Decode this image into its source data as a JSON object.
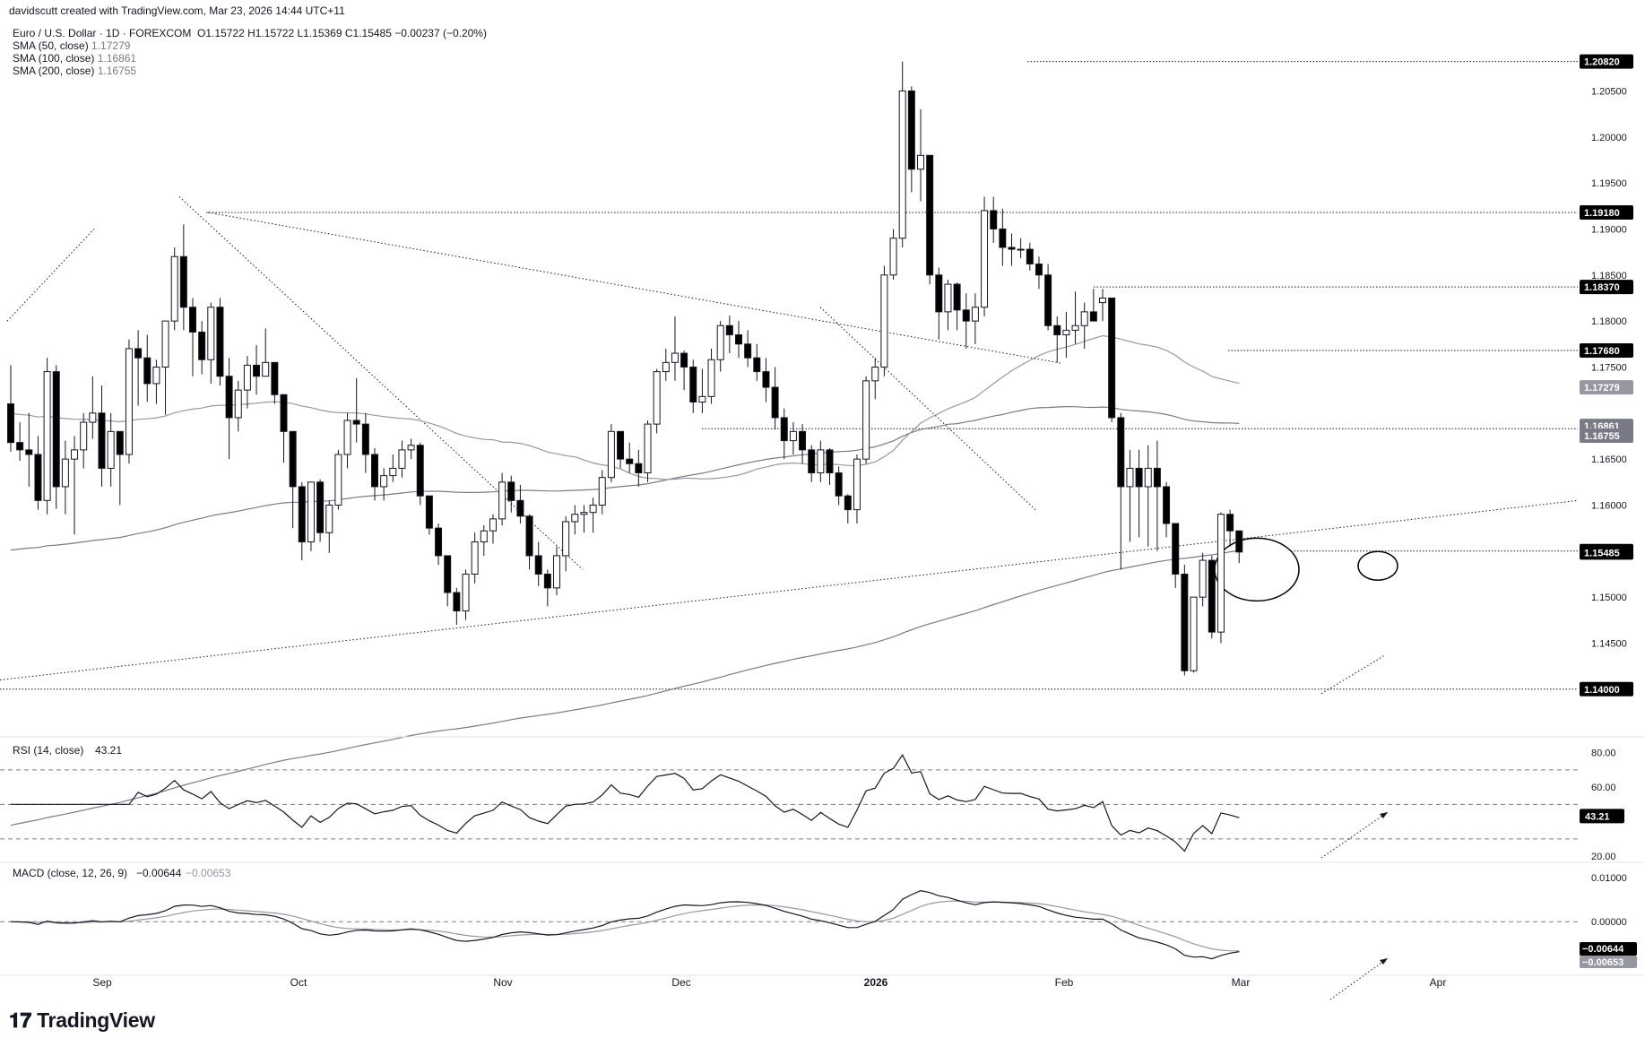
{
  "header": {
    "credit": "davidscutt created with TradingView.com, Mar 23, 2026 14:44 UTC+11",
    "symbol": "Euro / U.S. Dollar · 1D · FOREXCOM",
    "ohlc": "O1.15722  H1.15722  L1.15369  C1.15485  −0.00237 (−0.20%)",
    "sma50_label": "SMA (50, close)",
    "sma50_value": "1.17279",
    "sma100_label": "SMA (100, close)",
    "sma100_value": "1.16861",
    "sma200_label": "SMA (200, close)",
    "sma200_value": "1.16755"
  },
  "logo": {
    "text": "TradingView",
    "icon": "tradingview-logo-icon"
  },
  "colors": {
    "up": "#ffffff",
    "down": "#000000",
    "wick": "#131722",
    "sma50": "#9598a1",
    "sma100": "#787b86",
    "sma200": "#787b86",
    "grid": "#787b86",
    "badge_dark": "#000000",
    "badge_sma": "#9598a1"
  },
  "chart_data": [
    {
      "type": "candlestick",
      "title": "Euro / U.S. Dollar · 1D · FOREXCOM",
      "x_tick_labels": [
        "Sep",
        "Oct",
        "Nov",
        "Dec",
        "2026",
        "Feb",
        "Mar",
        "Apr"
      ],
      "y_tick_labels": [
        "1.20500",
        "1.20000",
        "1.19500",
        "1.19000",
        "1.18500",
        "1.18000",
        "1.17500",
        "1.16500",
        "1.16000",
        "1.15000",
        "1.14500"
      ],
      "ylim": [
        1.1355,
        1.2105
      ],
      "level_labels": [
        "1.20820",
        "1.19180",
        "1.18370",
        "1.17680",
        "1.16830",
        "1.15500",
        "1.15485",
        "1.14000"
      ],
      "sma_labels": [
        "1.17279",
        "1.16861",
        "1.16755"
      ],
      "horizontal_levels": [
        1.2082,
        1.1918,
        1.1837,
        1.1768,
        1.1683,
        1.155,
        1.14
      ],
      "bars": [
        [
          1.171,
          1.1752,
          1.1658,
          1.1668
        ],
        [
          1.1668,
          1.169,
          1.1648,
          1.166
        ],
        [
          1.166,
          1.17,
          1.162,
          1.1655
        ],
        [
          1.1655,
          1.1675,
          1.1595,
          1.1605
        ],
        [
          1.1605,
          1.176,
          1.159,
          1.1745
        ],
        [
          1.1745,
          1.1752,
          1.1596,
          1.162
        ],
        [
          1.162,
          1.167,
          1.159,
          1.165
        ],
        [
          1.165,
          1.1675,
          1.1568,
          1.166
        ],
        [
          1.166,
          1.17,
          1.164,
          1.169
        ],
        [
          1.169,
          1.174,
          1.1672,
          1.17
        ],
        [
          1.17,
          1.173,
          1.162,
          1.164
        ],
        [
          1.164,
          1.17,
          1.162,
          1.168
        ],
        [
          1.168,
          1.167,
          1.16,
          1.1655
        ],
        [
          1.1655,
          1.178,
          1.1645,
          1.177
        ],
        [
          1.177,
          1.179,
          1.1708,
          1.176
        ],
        [
          1.176,
          1.1785,
          1.1712,
          1.1732
        ],
        [
          1.1732,
          1.1758,
          1.171,
          1.175
        ],
        [
          1.175,
          1.1795,
          1.1698,
          1.18
        ],
        [
          1.18,
          1.188,
          1.179,
          1.187
        ],
        [
          1.187,
          1.1905,
          1.179,
          1.1815
        ],
        [
          1.1815,
          1.1825,
          1.174,
          1.1788
        ],
        [
          1.1788,
          1.18,
          1.1742,
          1.1758
        ],
        [
          1.1758,
          1.182,
          1.1732,
          1.1815
        ],
        [
          1.1815,
          1.1825,
          1.173,
          1.174
        ],
        [
          1.174,
          1.176,
          1.165,
          1.1695
        ],
        [
          1.1695,
          1.1735,
          1.168,
          1.1725
        ],
        [
          1.1725,
          1.1762,
          1.1705,
          1.1752
        ],
        [
          1.1752,
          1.1774,
          1.172,
          1.174
        ],
        [
          1.174,
          1.1792,
          1.174,
          1.1755
        ],
        [
          1.1755,
          1.1755,
          1.171,
          1.172
        ],
        [
          1.172,
          1.172,
          1.1646,
          1.168
        ],
        [
          1.168,
          1.165,
          1.1575,
          1.162
        ],
        [
          1.162,
          1.1625,
          1.154,
          1.156
        ],
        [
          1.156,
          1.1625,
          1.155,
          1.1625
        ],
        [
          1.1625,
          1.1628,
          1.156,
          1.157
        ],
        [
          1.157,
          1.1605,
          1.1548,
          1.16
        ],
        [
          1.16,
          1.166,
          1.1595,
          1.1655
        ],
        [
          1.1655,
          1.17,
          1.164,
          1.1692
        ],
        [
          1.1692,
          1.1738,
          1.1668,
          1.1688
        ],
        [
          1.1688,
          1.17,
          1.1635,
          1.1655
        ],
        [
          1.1655,
          1.1662,
          1.1605,
          1.162
        ],
        [
          1.162,
          1.164,
          1.1605,
          1.1632
        ],
        [
          1.1632,
          1.1655,
          1.1625,
          1.164
        ],
        [
          1.164,
          1.167,
          1.163,
          1.166
        ],
        [
          1.166,
          1.1672,
          1.165,
          1.1665
        ],
        [
          1.1665,
          1.1668,
          1.16,
          1.161
        ],
        [
          1.161,
          1.1605,
          1.1568,
          1.1575
        ],
        [
          1.1575,
          1.158,
          1.1535,
          1.1545
        ],
        [
          1.1545,
          1.1535,
          1.149,
          1.1505
        ],
        [
          1.1505,
          1.151,
          1.147,
          1.1485
        ],
        [
          1.1485,
          1.153,
          1.1475,
          1.1525
        ],
        [
          1.1525,
          1.157,
          1.1515,
          1.156
        ],
        [
          1.156,
          1.1578,
          1.1545,
          1.1572
        ],
        [
          1.1572,
          1.159,
          1.1558,
          1.1585
        ],
        [
          1.1585,
          1.1635,
          1.1578,
          1.1625
        ],
        [
          1.1625,
          1.1632,
          1.1592,
          1.1605
        ],
        [
          1.1605,
          1.1622,
          1.158,
          1.1588
        ],
        [
          1.1588,
          1.159,
          1.153,
          1.1545
        ],
        [
          1.1545,
          1.156,
          1.1512,
          1.1525
        ],
        [
          1.1525,
          1.153,
          1.149,
          1.151
        ],
        [
          1.151,
          1.1555,
          1.1502,
          1.1545
        ],
        [
          1.1545,
          1.1588,
          1.1528,
          1.1582
        ],
        [
          1.1582,
          1.16,
          1.1568,
          1.159
        ],
        [
          1.159,
          1.16,
          1.157,
          1.1592
        ],
        [
          1.1592,
          1.1608,
          1.157,
          1.16
        ],
        [
          1.16,
          1.1638,
          1.159,
          1.163
        ],
        [
          1.163,
          1.1688,
          1.1625,
          1.168
        ],
        [
          1.168,
          1.168,
          1.164,
          1.165
        ],
        [
          1.165,
          1.1668,
          1.1635,
          1.1645
        ],
        [
          1.1645,
          1.166,
          1.162,
          1.1635
        ],
        [
          1.1635,
          1.1692,
          1.1625,
          1.1688
        ],
        [
          1.1688,
          1.1748,
          1.1678,
          1.1745
        ],
        [
          1.1745,
          1.177,
          1.1735,
          1.1755
        ],
        [
          1.1755,
          1.1805,
          1.1735,
          1.1765
        ],
        [
          1.1765,
          1.1768,
          1.1725,
          1.175
        ],
        [
          1.175,
          1.1758,
          1.17,
          1.1712
        ],
        [
          1.1712,
          1.1748,
          1.17,
          1.1718
        ],
        [
          1.1718,
          1.177,
          1.171,
          1.1758
        ],
        [
          1.1758,
          1.18,
          1.1745,
          1.1795
        ],
        [
          1.1795,
          1.1806,
          1.1765,
          1.1785
        ],
        [
          1.1785,
          1.18,
          1.176,
          1.1775
        ],
        [
          1.1775,
          1.179,
          1.175,
          1.176
        ],
        [
          1.176,
          1.1775,
          1.1735,
          1.1745
        ],
        [
          1.1745,
          1.176,
          1.1712,
          1.1728
        ],
        [
          1.1728,
          1.175,
          1.1682,
          1.1695
        ],
        [
          1.1695,
          1.1705,
          1.165,
          1.167
        ],
        [
          1.167,
          1.169,
          1.1655,
          1.168
        ],
        [
          1.168,
          1.1688,
          1.1645,
          1.166
        ],
        [
          1.166,
          1.1665,
          1.1625,
          1.1635
        ],
        [
          1.1635,
          1.167,
          1.1625,
          1.166
        ],
        [
          1.166,
          1.1662,
          1.1622,
          1.1635
        ],
        [
          1.1635,
          1.1642,
          1.16,
          1.161
        ],
        [
          1.161,
          1.1612,
          1.158,
          1.1595
        ],
        [
          1.1595,
          1.1655,
          1.158,
          1.165
        ],
        [
          1.165,
          1.174,
          1.1645,
          1.1735
        ],
        [
          1.1735,
          1.176,
          1.1715,
          1.175
        ],
        [
          1.175,
          1.186,
          1.174,
          1.185
        ],
        [
          1.185,
          1.19,
          1.1845,
          1.189
        ],
        [
          1.189,
          1.2082,
          1.188,
          1.205
        ],
        [
          1.205,
          1.2055,
          1.194,
          1.1965
        ],
        [
          1.1965,
          1.203,
          1.193,
          1.198
        ],
        [
          1.198,
          1.198,
          1.184,
          1.185
        ],
        [
          1.185,
          1.1858,
          1.178,
          1.181
        ],
        [
          1.181,
          1.1845,
          1.179,
          1.184
        ],
        [
          1.184,
          1.1842,
          1.179,
          1.1812
        ],
        [
          1.1812,
          1.183,
          1.177,
          1.18
        ],
        [
          1.18,
          1.183,
          1.1775,
          1.1815
        ],
        [
          1.1815,
          1.1935,
          1.1805,
          1.192
        ],
        [
          1.192,
          1.1935,
          1.1885,
          1.19
        ],
        [
          1.19,
          1.1922,
          1.186,
          1.188
        ],
        [
          1.188,
          1.1895,
          1.186,
          1.1878
        ],
        [
          1.1878,
          1.189,
          1.1868,
          1.1878
        ],
        [
          1.1878,
          1.1885,
          1.1855,
          1.1862
        ],
        [
          1.1862,
          1.187,
          1.1835,
          1.185
        ],
        [
          1.185,
          1.1862,
          1.179,
          1.1795
        ],
        [
          1.1795,
          1.1805,
          1.1755,
          1.1785
        ],
        [
          1.1785,
          1.181,
          1.176,
          1.179
        ],
        [
          1.179,
          1.1832,
          1.1775,
          1.1795
        ],
        [
          1.1795,
          1.182,
          1.177,
          1.181
        ],
        [
          1.181,
          1.1835,
          1.18,
          1.18
        ],
        [
          1.182,
          1.1835,
          1.18,
          1.1825
        ],
        [
          1.1825,
          1.1825,
          1.169,
          1.1695
        ],
        [
          1.1695,
          1.17,
          1.153,
          1.162
        ],
        [
          1.162,
          1.166,
          1.156,
          1.164
        ],
        [
          1.164,
          1.166,
          1.1565,
          1.162
        ],
        [
          1.162,
          1.1665,
          1.1555,
          1.164
        ],
        [
          1.164,
          1.167,
          1.155,
          1.162
        ],
        [
          1.162,
          1.1625,
          1.1565,
          1.158
        ],
        [
          1.158,
          1.158,
          1.151,
          1.1525
        ],
        [
          1.1525,
          1.1535,
          1.1415,
          1.142
        ],
        [
          1.142,
          1.15,
          1.1418,
          1.15
        ],
        [
          1.15,
          1.1548,
          1.149,
          1.154
        ],
        [
          1.154,
          1.1545,
          1.1455,
          1.1462
        ],
        [
          1.1462,
          1.1592,
          1.145,
          1.159
        ],
        [
          1.159,
          1.1595,
          1.1555,
          1.1572
        ],
        [
          1.1572,
          1.1572,
          1.1537,
          1.1549
        ]
      ]
    },
    {
      "type": "line",
      "title": "RSI (14, close)",
      "value_label": "43.21",
      "y_tick_labels": [
        "80.00",
        "60.00",
        "20.00"
      ],
      "ylim": [
        19,
        85
      ],
      "levels": [
        70,
        50,
        30
      ]
    },
    {
      "type": "line",
      "title": "MACD (close, 12, 26, 9)",
      "macd_value": "−0.00644",
      "signal_value": "−0.00653",
      "y_tick_labels": [
        "0.01000",
        "0.00000",
        "−0.00644",
        "−0.00653"
      ],
      "ylim": [
        -0.0105,
        0.0118
      ]
    }
  ]
}
